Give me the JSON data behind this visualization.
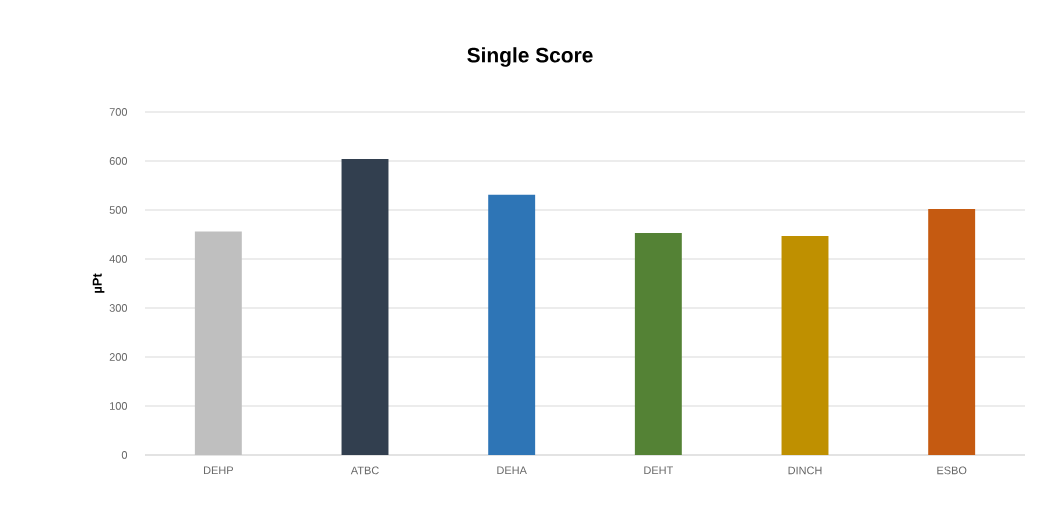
{
  "chart_data": {
    "type": "bar",
    "title": "Single Score",
    "ylabel": "µPt",
    "categories": [
      "DEHP",
      "ATBC",
      "DEHA",
      "DEHT",
      "DINCH",
      "ESBO"
    ],
    "values": [
      456,
      604,
      531,
      453,
      447,
      502
    ],
    "colors": [
      "#bfbfbf",
      "#323f4f",
      "#2e75b6",
      "#548235",
      "#bf9000",
      "#c55a11"
    ],
    "ylim": [
      0,
      700
    ],
    "yticks": [
      0,
      100,
      200,
      300,
      400,
      500,
      600,
      700
    ],
    "grid": "y"
  }
}
